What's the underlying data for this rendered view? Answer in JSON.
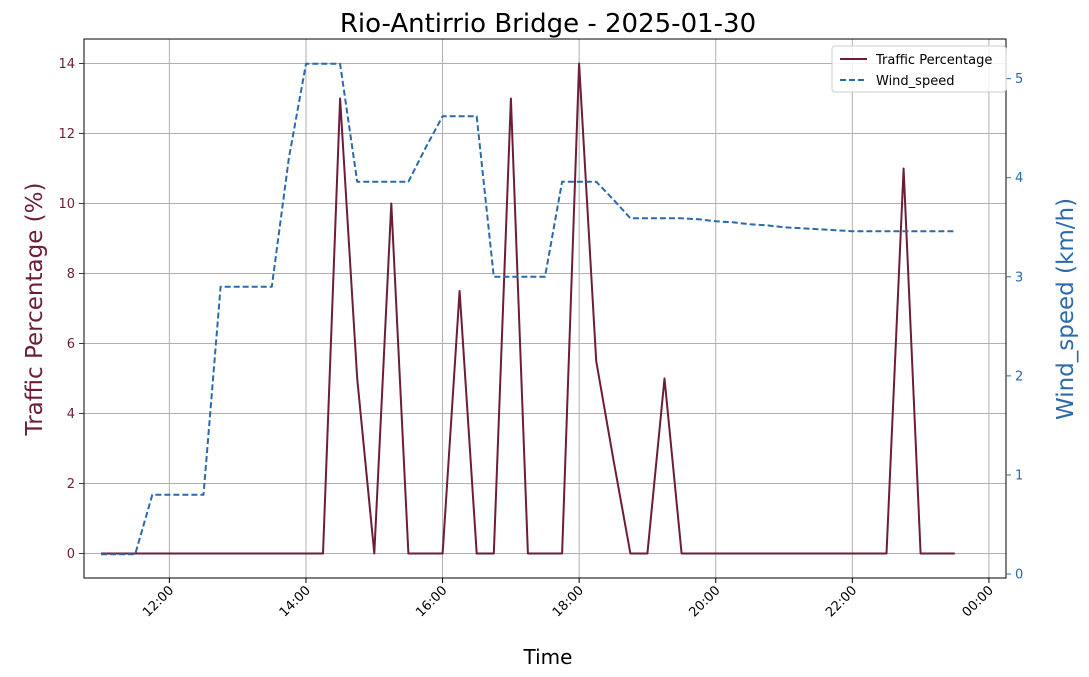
{
  "chart_data": {
    "type": "line",
    "title": "Rio-Antirrio Bridge - 2025-01-30",
    "xlabel": "Time",
    "ylabel_left": "Traffic Percentage (%)",
    "ylabel_right": "Wind_speed (km/h)",
    "x_ticks": [
      "12:00",
      "14:00",
      "16:00",
      "18:00",
      "20:00",
      "22:00",
      "00:00"
    ],
    "x_tick_hours": [
      12,
      14,
      16,
      18,
      20,
      22,
      24
    ],
    "xlim": [
      10.75,
      24.25
    ],
    "y_left_ticks": [
      0,
      2,
      4,
      6,
      8,
      10,
      12,
      14
    ],
    "y_left_lim": [
      -0.7,
      14.7
    ],
    "y_right_ticks": [
      0,
      1,
      2,
      3,
      4,
      5
    ],
    "y_right_lim": [
      -0.04,
      5.4
    ],
    "grid": true,
    "legend_position": "top-right",
    "colors": {
      "traffic": "#6b1d3a",
      "wind": "#2a6aab",
      "left_axis": "#6b1d3a",
      "right_axis": "#2a6aab"
    },
    "series": [
      {
        "name": "Traffic Percentage",
        "axis": "left",
        "style": "solid",
        "x": [
          11.0,
          11.25,
          11.5,
          11.75,
          12.0,
          12.25,
          12.5,
          12.75,
          13.0,
          13.25,
          13.5,
          13.75,
          14.0,
          14.25,
          14.5,
          14.75,
          15.0,
          15.25,
          15.5,
          15.75,
          16.0,
          16.25,
          16.5,
          16.75,
          17.0,
          17.25,
          17.5,
          17.75,
          18.0,
          18.25,
          18.5,
          18.75,
          19.0,
          19.25,
          19.5,
          19.75,
          20.0,
          20.25,
          20.5,
          20.75,
          21.0,
          21.25,
          21.5,
          21.75,
          22.0,
          22.25,
          22.5,
          22.75,
          23.0,
          23.25,
          23.5
        ],
        "y": [
          0,
          0,
          0,
          0,
          0,
          0,
          0,
          0,
          0,
          0,
          0,
          0,
          0,
          0,
          13,
          5,
          0,
          10,
          0,
          0,
          0,
          7.5,
          0,
          0,
          13,
          0,
          0,
          0,
          14,
          5.5,
          2.7,
          0,
          0,
          5,
          0,
          0,
          0,
          0,
          0,
          0,
          0,
          0,
          0,
          0,
          0,
          0,
          0,
          11,
          0,
          0,
          0
        ]
      },
      {
        "name": "Wind_speed",
        "axis": "right",
        "style": "dashed",
        "x": [
          11.0,
          11.25,
          11.5,
          11.75,
          12.0,
          12.25,
          12.5,
          12.75,
          13.0,
          13.25,
          13.5,
          13.75,
          14.0,
          14.25,
          14.5,
          14.75,
          15.0,
          15.25,
          15.5,
          15.75,
          16.0,
          16.25,
          16.5,
          16.75,
          17.0,
          17.25,
          17.5,
          17.75,
          18.0,
          18.25,
          18.5,
          18.75,
          19.0,
          19.25,
          19.5,
          19.75,
          20.0,
          20.25,
          20.5,
          20.75,
          21.0,
          21.25,
          21.5,
          21.75,
          22.0,
          22.25,
          22.5,
          22.75,
          23.0,
          23.25,
          23.5
        ],
        "y": [
          0.2,
          0.2,
          0.2,
          0.8,
          0.8,
          0.8,
          0.8,
          2.9,
          2.9,
          2.9,
          2.9,
          4.2,
          5.15,
          5.15,
          5.15,
          3.96,
          3.96,
          3.96,
          3.96,
          4.3,
          4.62,
          4.62,
          4.62,
          3.0,
          3.0,
          3.0,
          3.0,
          3.96,
          3.96,
          3.96,
          3.78,
          3.59,
          3.59,
          3.59,
          3.59,
          3.58,
          3.56,
          3.55,
          3.53,
          3.52,
          3.5,
          3.49,
          3.48,
          3.47,
          3.46,
          3.46,
          3.46,
          3.46,
          3.46,
          3.46,
          3.46
        ]
      }
    ]
  }
}
